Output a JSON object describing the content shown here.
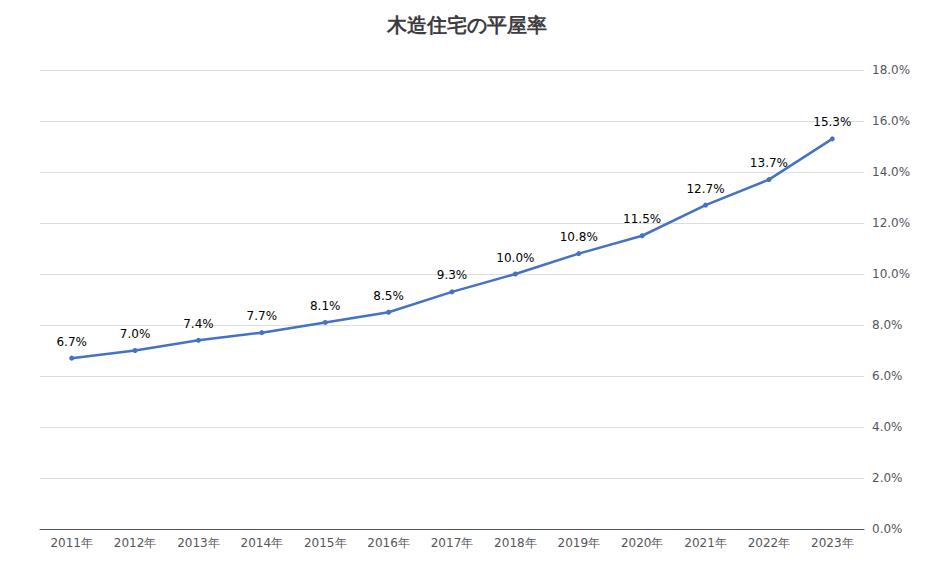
{
  "chart_data": {
    "type": "line",
    "title": "木造住宅の平屋率",
    "categories": [
      "2011年",
      "2012年",
      "2013年",
      "2014年",
      "2015年",
      "2016年",
      "2017年",
      "2018年",
      "2019年",
      "2020年",
      "2021年",
      "2022年",
      "2023年"
    ],
    "values": [
      6.7,
      7.0,
      7.4,
      7.7,
      8.1,
      8.5,
      9.3,
      10.0,
      10.8,
      11.5,
      12.7,
      13.7,
      15.3
    ],
    "value_labels": [
      "6.7%",
      "7.0%",
      "7.4%",
      "7.7%",
      "8.1%",
      "8.5%",
      "9.3%",
      "10.0%",
      "10.8%",
      "11.5%",
      "12.7%",
      "13.7%",
      "15.3%"
    ],
    "color": "#4472C4",
    "ylim": [
      0.0,
      18.0
    ],
    "yticks": [
      {
        "value": 0.0,
        "label": "0.0%"
      },
      {
        "value": 2.0,
        "label": "2.0%"
      },
      {
        "value": 4.0,
        "label": "4.0%"
      },
      {
        "value": 6.0,
        "label": "6.0%"
      },
      {
        "value": 8.0,
        "label": "8.0%"
      },
      {
        "value": 10.0,
        "label": "10.0%"
      },
      {
        "value": 12.0,
        "label": "12.0%"
      },
      {
        "value": 14.0,
        "label": "14.0%"
      },
      {
        "value": 16.0,
        "label": "16.0%"
      },
      {
        "value": 18.0,
        "label": "18.0%"
      }
    ],
    "grid": true,
    "data_labels": true
  }
}
